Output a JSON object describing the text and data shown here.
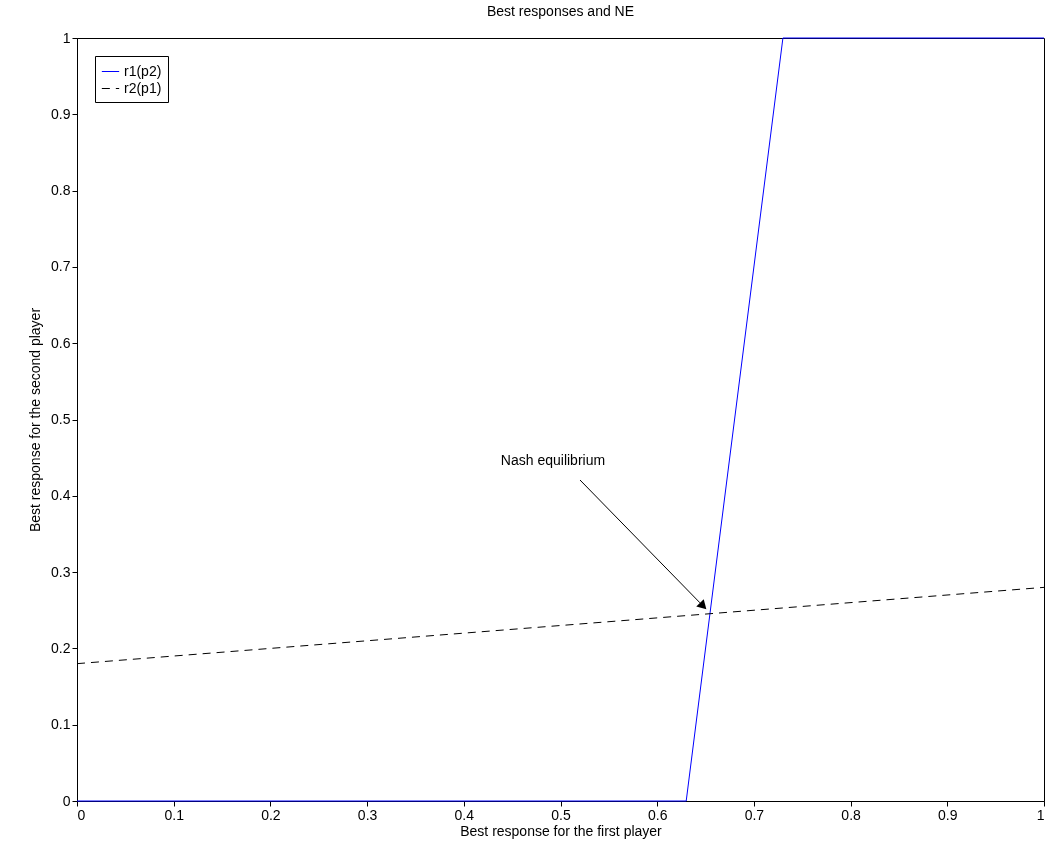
{
  "chart_data": {
    "type": "line",
    "title": "Best responses and NE",
    "xlabel": "Best response for the first player",
    "ylabel": "Best response for the second player",
    "xlim": [
      0,
      1
    ],
    "ylim": [
      0,
      1
    ],
    "xticks": [
      0,
      0.1,
      0.2,
      0.3,
      0.4,
      0.5,
      0.6,
      0.7,
      0.8,
      0.9,
      1
    ],
    "yticks": [
      0,
      0.1,
      0.2,
      0.3,
      0.4,
      0.5,
      0.6,
      0.7,
      0.8,
      0.9,
      1
    ],
    "grid": false,
    "legend": "top left",
    "series": [
      {
        "name": "r1(p2)",
        "color": "#0000ff",
        "line_style": "solid",
        "x": [
          0,
          0.63,
          0.73,
          1
        ],
        "values": [
          0,
          0,
          1,
          1
        ]
      },
      {
        "name": "r2(p1)",
        "color": "#000000",
        "line_style": "dashed",
        "x": [
          0,
          1
        ],
        "values": [
          0.18,
          0.28
        ]
      }
    ],
    "annotations": [
      "Nash equilibrium"
    ]
  }
}
